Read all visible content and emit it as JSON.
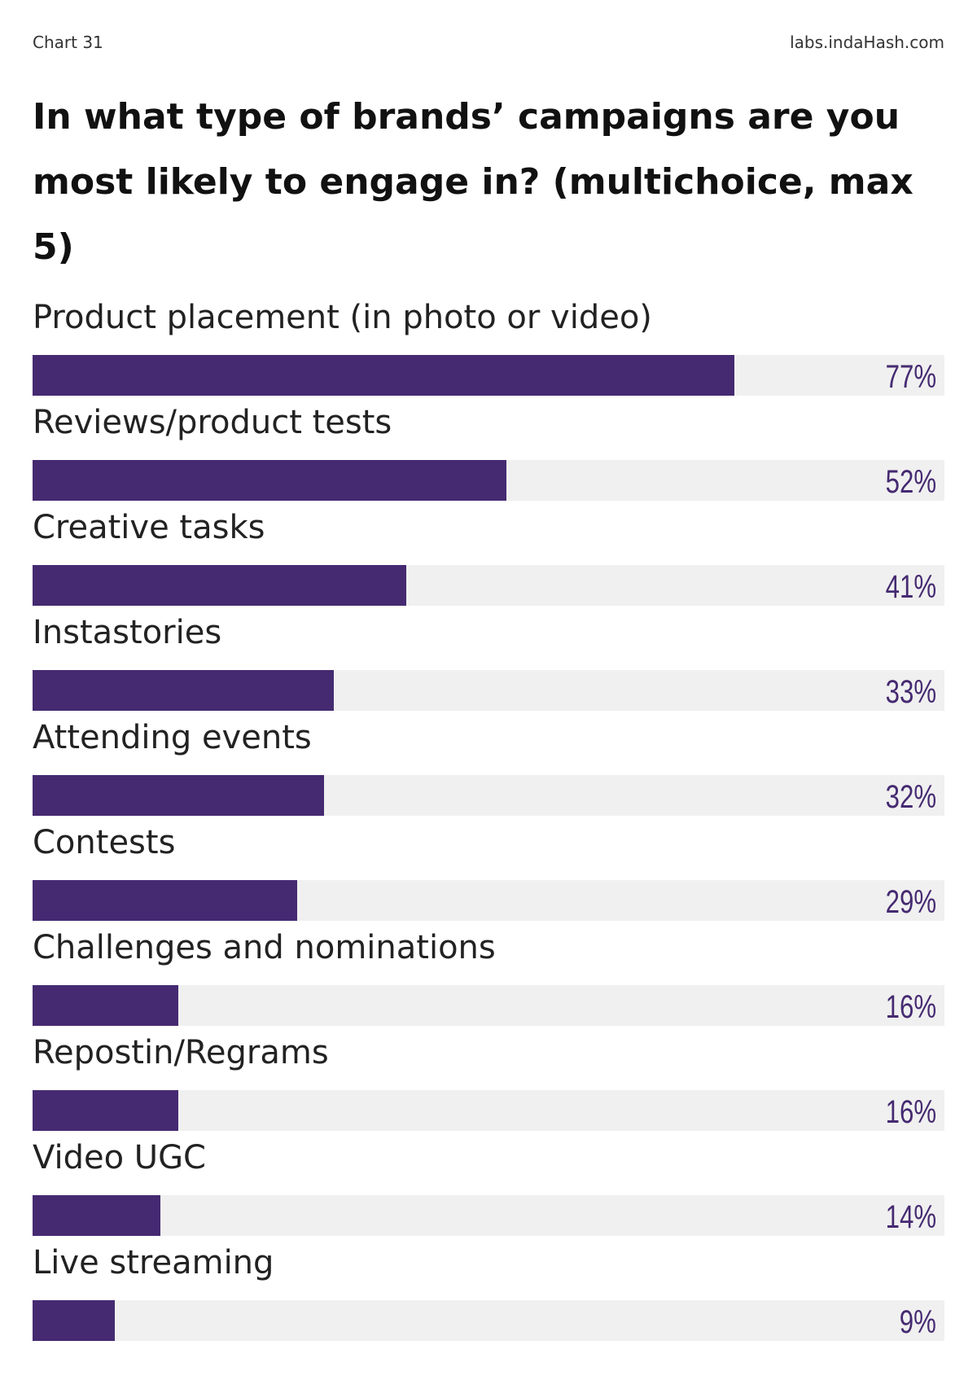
{
  "header": {
    "chart_label": "Chart 31",
    "source": "labs.indaHash.com"
  },
  "colors": {
    "bar": "#452a71",
    "track": "#f0f0f0",
    "value_text": "#452a71"
  },
  "chart_data": {
    "type": "bar",
    "orientation": "horizontal",
    "title": "In what type of brands’ campaigns are you most likely to engage in? (multichoice, max 5)",
    "categories": [
      "Product placement (in photo or video)",
      "Reviews/product tests",
      "Creative tasks",
      "Instastories",
      "Attending events",
      "Contests",
      "Challenges and nominations",
      "Repostin/Regrams",
      "Video UGC",
      "Live streaming"
    ],
    "values": [
      77,
      52,
      41,
      33,
      32,
      29,
      16,
      16,
      14,
      9
    ],
    "value_labels": [
      "77%",
      "52%",
      "41%",
      "33%",
      "32%",
      "29%",
      "16%",
      "16%",
      "14%",
      "9%"
    ],
    "unit": "%",
    "xlim": [
      0,
      100
    ],
    "grid": false,
    "legend": "none"
  }
}
